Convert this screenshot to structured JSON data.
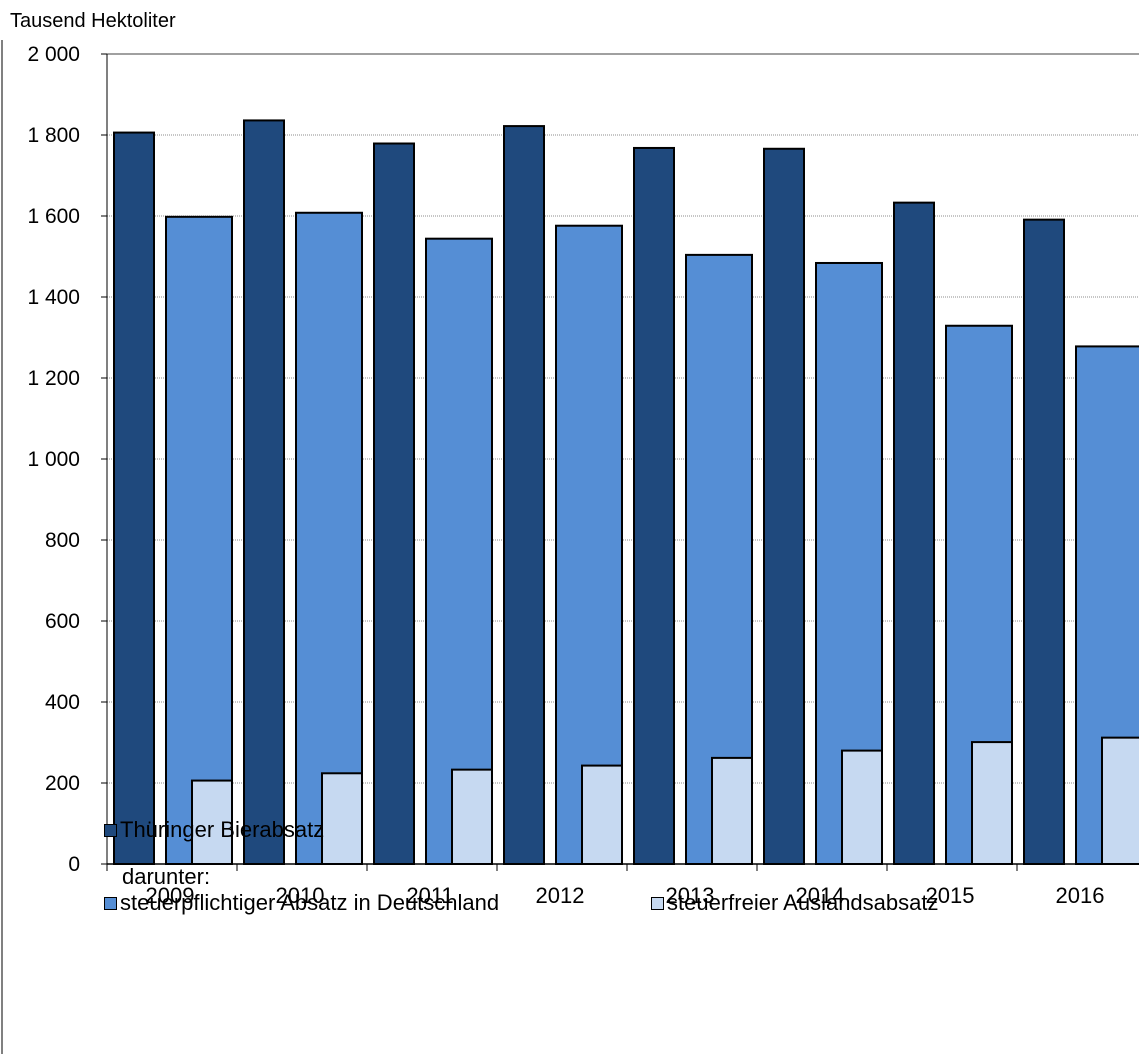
{
  "chart_data": {
    "type": "bar",
    "unit_label": "Tausend  Hektoliter",
    "categories": [
      "2009",
      "2010",
      "2011",
      "2012",
      "2013",
      "2014",
      "2015",
      "2016"
    ],
    "series": [
      {
        "name": "Thüringer Bierabsatz",
        "color": "#1F497D",
        "values": [
          1806,
          1836,
          1779,
          1822,
          1768,
          1766,
          1633,
          1591
        ]
      },
      {
        "name": "steuerpflichtiger Absatz in Deutschland",
        "color": "#558ED5",
        "values": [
          1598,
          1608,
          1544,
          1576,
          1504,
          1484,
          1329,
          1278
        ]
      },
      {
        "name": "steuerfreier Auslandsabsatz",
        "color": "#C6D9F1",
        "values": [
          206,
          224,
          233,
          243,
          262,
          280,
          301,
          312
        ]
      }
    ],
    "ylim": [
      0,
      2000
    ],
    "yticks": [
      0,
      200,
      400,
      600,
      800,
      1000,
      1200,
      1400,
      1600,
      1800,
      2000
    ],
    "ytick_labels": [
      "0",
      "200",
      "400",
      "600",
      "800",
      "1 000",
      "1 200",
      "1 400",
      "1 600",
      "1 800",
      "2 000"
    ],
    "grid": true,
    "legend_note": "darunter:"
  }
}
